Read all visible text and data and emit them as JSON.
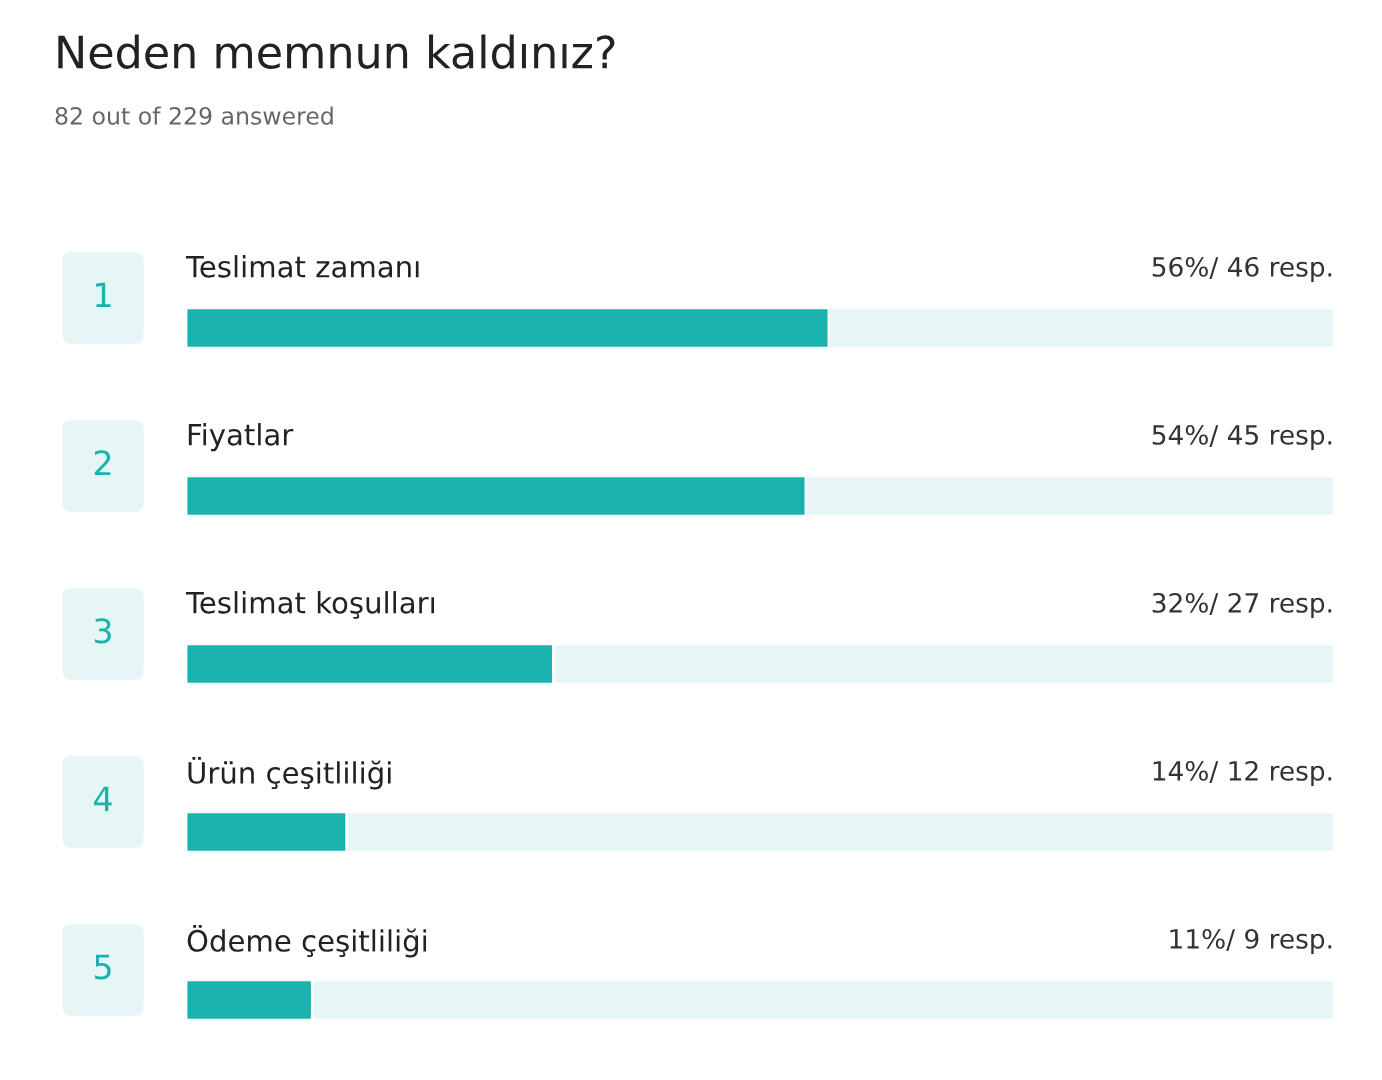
{
  "chart_data": {
    "type": "bar",
    "orientation": "horizontal",
    "title": "Neden memnun kaldınız?",
    "subtitle": "82 out of 229 answered",
    "categories": [
      "Teslimat zamanı",
      "Fiyatlar",
      "Teslimat koşulları",
      "Ürün çeşitliliği",
      "Ödeme çeşitliliği"
    ],
    "values": [
      56,
      54,
      32,
      14,
      11
    ],
    "value_labels": [
      "56%/ 46 resp.",
      "54%/ 45 resp.",
      "32%/ 27 resp.",
      "14%/ 12 resp.",
      "11%/ 9 resp."
    ],
    "annotations": [
      "1",
      "2",
      "3",
      "4",
      "5"
    ],
    "color": "#17b3ac",
    "xlim": [
      0,
      100
    ]
  }
}
